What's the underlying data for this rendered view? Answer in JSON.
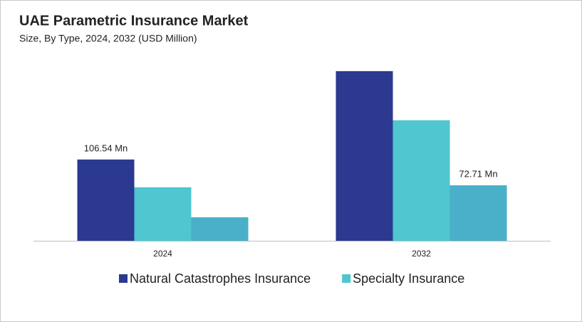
{
  "chart_data": {
    "type": "bar",
    "title": "UAE Parametric Insurance Market",
    "subtitle": "Size, By Type, 2024, 2032 (USD Million)",
    "categories": [
      "2024",
      "2032"
    ],
    "series": [
      {
        "name": "Natural Catastrophes Insurance",
        "color": "#2b3990",
        "values": [
          106.54,
          222.4
        ],
        "value_labels": [
          "106.54 Mn",
          null
        ]
      },
      {
        "name": "Specialty Insurance",
        "color": "#4fc6d0",
        "values": [
          70.1,
          158.0
        ]
      },
      {
        "color": "#4aafc8",
        "values": [
          30.8,
          72.71
        ],
        "value_labels": [
          null,
          "72.71 Mn"
        ]
      }
    ],
    "ylim": [
      0,
      240
    ]
  }
}
